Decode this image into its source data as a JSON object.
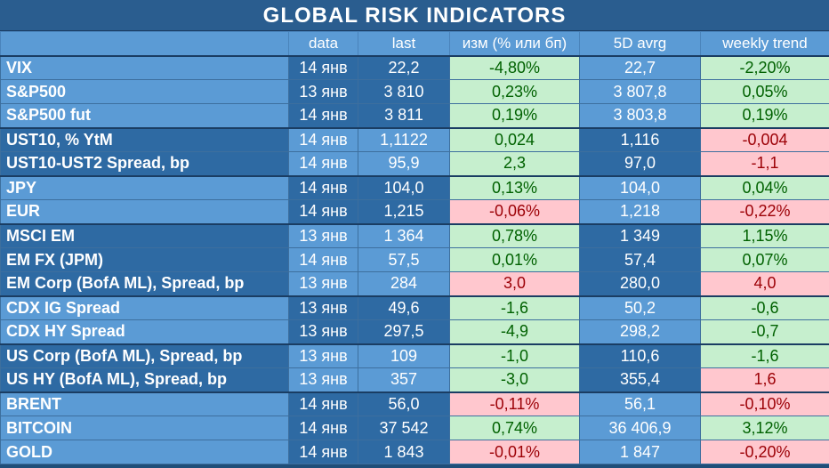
{
  "title": "GLOBAL   RISK   INDICATORS",
  "headers": [
    "",
    "data",
    "last",
    "изм (% или бп)",
    "5D avrg",
    "weekly trend"
  ],
  "rows": [
    {
      "name": "VIX",
      "date": "14 янв",
      "last": "22,2",
      "change": "-4,80%",
      "avg": "22,7",
      "weekly": "-2,20%",
      "change_sign": "pos",
      "weekly_sign": "pos",
      "shade": "l",
      "group_start": true
    },
    {
      "name": "S&P500",
      "date": "13 янв",
      "last": "3 810",
      "change": "0,23%",
      "avg": "3 807,8",
      "weekly": "0,05%",
      "change_sign": "pos",
      "weekly_sign": "pos",
      "shade": "l",
      "group_start": false
    },
    {
      "name": "S&P500 fut",
      "date": "14 янв",
      "last": "3 811",
      "change": "0,19%",
      "avg": "3 803,8",
      "weekly": "0,19%",
      "change_sign": "pos",
      "weekly_sign": "pos",
      "shade": "l",
      "group_start": false
    },
    {
      "name": "UST10, % YtM",
      "date": "14 янв",
      "last": "1,1122",
      "change": "0,024",
      "avg": "1,116",
      "weekly": "-0,004",
      "change_sign": "pos",
      "weekly_sign": "neg",
      "shade": "d",
      "group_start": true
    },
    {
      "name": "UST10-UST2 Spread, bp",
      "date": "14 янв",
      "last": "95,9",
      "change": "2,3",
      "avg": "97,0",
      "weekly": "-1,1",
      "change_sign": "pos",
      "weekly_sign": "neg",
      "shade": "d",
      "group_start": false
    },
    {
      "name": "JPY",
      "date": "14 янв",
      "last": "104,0",
      "change": "0,13%",
      "avg": "104,0",
      "weekly": "0,04%",
      "change_sign": "pos",
      "weekly_sign": "pos",
      "shade": "l",
      "group_start": true
    },
    {
      "name": "EUR",
      "date": "14 янв",
      "last": "1,215",
      "change": "-0,06%",
      "avg": "1,218",
      "weekly": "-0,22%",
      "change_sign": "neg",
      "weekly_sign": "neg",
      "shade": "l",
      "group_start": false
    },
    {
      "name": "MSCI EM",
      "date": "13 янв",
      "last": "1 364",
      "change": "0,78%",
      "avg": "1 349",
      "weekly": "1,15%",
      "change_sign": "pos",
      "weekly_sign": "pos",
      "shade": "d",
      "group_start": true
    },
    {
      "name": "EM FX (JPM)",
      "date": "14 янв",
      "last": "57,5",
      "change": "0,01%",
      "avg": "57,4",
      "weekly": "0,07%",
      "change_sign": "pos",
      "weekly_sign": "pos",
      "shade": "d",
      "group_start": false
    },
    {
      "name": "EM Corp (BofA ML), Spread, bp",
      "date": "13 янв",
      "last": "284",
      "change": "3,0",
      "avg": "280,0",
      "weekly": "4,0",
      "change_sign": "neg",
      "weekly_sign": "neg",
      "shade": "d",
      "group_start": false
    },
    {
      "name": "CDX IG Spread",
      "date": "13 янв",
      "last": "49,6",
      "change": "-1,6",
      "avg": "50,2",
      "weekly": "-0,6",
      "change_sign": "pos",
      "weekly_sign": "pos",
      "shade": "l",
      "group_start": true
    },
    {
      "name": "CDX HY Spread",
      "date": "13 янв",
      "last": "297,5",
      "change": "-4,9",
      "avg": "298,2",
      "weekly": "-0,7",
      "change_sign": "pos",
      "weekly_sign": "pos",
      "shade": "l",
      "group_start": false
    },
    {
      "name": "US Corp (BofA ML), Spread, bp",
      "date": "13 янв",
      "last": "109",
      "change": "-1,0",
      "avg": "110,6",
      "weekly": "-1,6",
      "change_sign": "pos",
      "weekly_sign": "pos",
      "shade": "d",
      "group_start": true
    },
    {
      "name": "US HY (BofA ML), Spread, bp",
      "date": "13 янв",
      "last": "357",
      "change": "-3,0",
      "avg": "355,4",
      "weekly": "1,6",
      "change_sign": "pos",
      "weekly_sign": "neg",
      "shade": "d",
      "group_start": false
    },
    {
      "name": "BRENT",
      "date": "14 янв",
      "last": "56,0",
      "change": "-0,11%",
      "avg": "56,1",
      "weekly": "-0,10%",
      "change_sign": "neg",
      "weekly_sign": "neg",
      "shade": "l",
      "group_start": true
    },
    {
      "name": "BITCOIN",
      "date": "14 янв",
      "last": "37 542",
      "change": "0,74%",
      "avg": "36 406,9",
      "weekly": "3,12%",
      "change_sign": "pos",
      "weekly_sign": "pos",
      "shade": "l",
      "group_start": false
    },
    {
      "name": "GOLD",
      "date": "14 янв",
      "last": "1 843",
      "change": "-0,01%",
      "avg": "1 847",
      "weekly": "-0,20%",
      "change_sign": "neg",
      "weekly_sign": "neg",
      "shade": "l",
      "group_start": false
    }
  ]
}
